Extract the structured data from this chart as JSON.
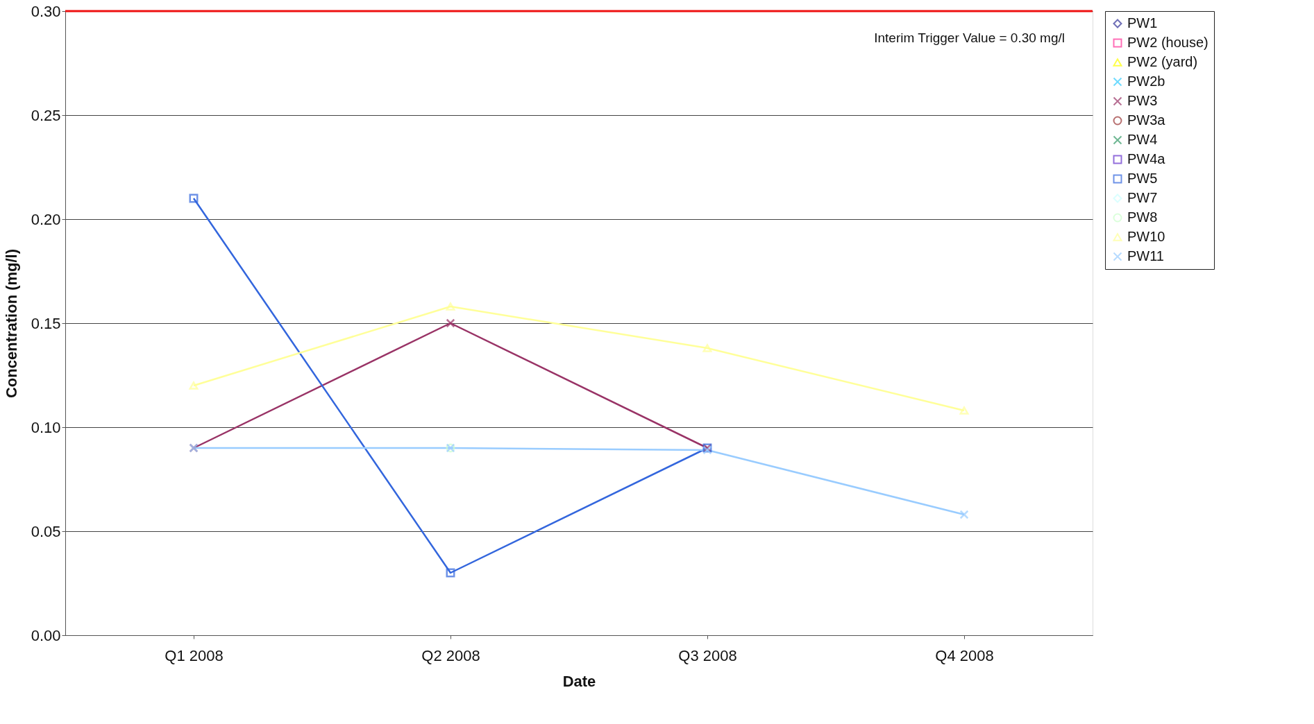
{
  "chart_data": {
    "type": "line",
    "xlabel": "Date",
    "ylabel": "Concentration (mg/l)",
    "categories": [
      "Q1 2008",
      "Q2 2008",
      "Q3 2008",
      "Q4 2008"
    ],
    "ylim": [
      0,
      0.3
    ],
    "yticks": [
      {
        "value": 0,
        "label": "0.00"
      },
      {
        "value": 0.05,
        "label": "0.05"
      },
      {
        "value": 0.1,
        "label": "0.10"
      },
      {
        "value": 0.15,
        "label": "0.15"
      },
      {
        "value": 0.2,
        "label": "0.20"
      },
      {
        "value": 0.25,
        "label": "0.25"
      },
      {
        "value": 0.3,
        "label": "0.30"
      }
    ],
    "grid": "y",
    "legend": "right",
    "series": [
      {
        "name": "PW1",
        "color": "#333399",
        "marker": "diamond",
        "values": [
          null,
          null,
          null,
          null
        ]
      },
      {
        "name": "PW2 (house)",
        "color": "#ff3399",
        "marker": "square",
        "values": [
          null,
          null,
          null,
          null
        ]
      },
      {
        "name": "PW2 (yard)",
        "color": "#ffff00",
        "marker": "triangle",
        "values": [
          null,
          null,
          null,
          null
        ]
      },
      {
        "name": "PW2b",
        "color": "#33ccff",
        "marker": "cross",
        "values": [
          null,
          null,
          null,
          null
        ]
      },
      {
        "name": "PW3",
        "color": "#993366",
        "marker": "cross",
        "values": [
          0.09,
          0.15,
          0.09,
          null
        ]
      },
      {
        "name": "PW3a",
        "color": "#993333",
        "marker": "circle",
        "values": [
          null,
          null,
          null,
          null
        ]
      },
      {
        "name": "PW4",
        "color": "#339966",
        "marker": "cross",
        "values": [
          null,
          null,
          null,
          null
        ]
      },
      {
        "name": "PW4a",
        "color": "#6633cc",
        "marker": "square",
        "values": [
          null,
          null,
          null,
          null
        ]
      },
      {
        "name": "PW5",
        "color": "#3366dd",
        "marker": "square",
        "values": [
          0.21,
          0.03,
          0.09,
          null
        ]
      },
      {
        "name": "PW7",
        "color": "#ccffff",
        "marker": "diamond",
        "values": [
          null,
          null,
          null,
          null
        ]
      },
      {
        "name": "PW8",
        "color": "#ccffcc",
        "marker": "circle",
        "values": [
          null,
          0.09,
          null,
          null
        ]
      },
      {
        "name": "PW10",
        "color": "#ffff99",
        "marker": "triangle",
        "values": [
          0.12,
          0.158,
          0.138,
          0.108
        ]
      },
      {
        "name": "PW11",
        "color": "#99ccff",
        "marker": "cross",
        "values": [
          0.09,
          0.09,
          0.089,
          0.058
        ]
      }
    ],
    "ref_lines": [
      {
        "axis": "y",
        "value": 0.3,
        "label": "Interim Trigger Value = 0.30 mg/l",
        "color": "#ee1111"
      }
    ]
  }
}
